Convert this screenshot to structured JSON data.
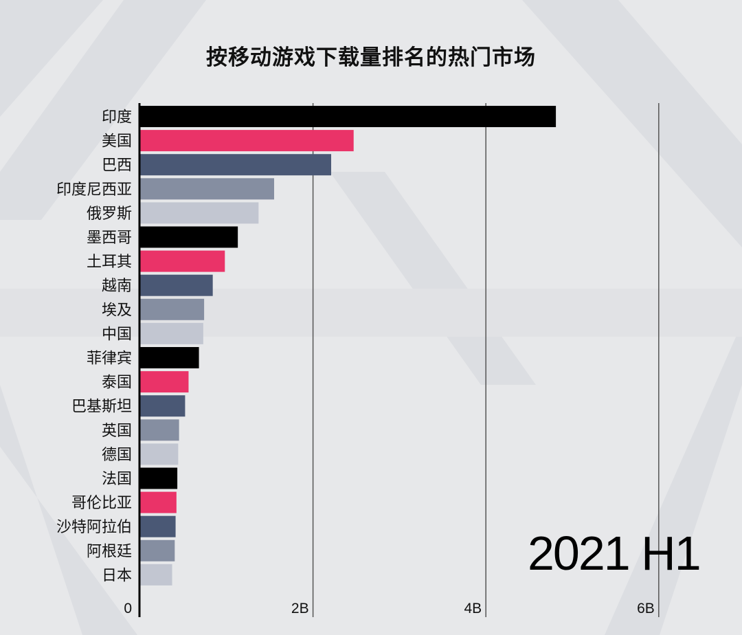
{
  "title": "按移动游戏下载量排名的热门市场",
  "period_label": "2021 H1",
  "colors": {
    "background": "#e7e8ea",
    "bar_cycle": [
      "#000000",
      "#ea3368",
      "#4a5875",
      "#858ea1",
      "#c2c6d1"
    ],
    "gridline": "#555555"
  },
  "chart_data": {
    "type": "bar",
    "orientation": "horizontal",
    "title": "按移动游戏下载量排名的热门市场",
    "categories": [
      "印度",
      "美国",
      "巴西",
      "印度尼西亚",
      "俄罗斯",
      "墨西哥",
      "土耳其",
      "越南",
      "埃及",
      "中国",
      "菲律宾",
      "泰国",
      "巴基斯坦",
      "英国",
      "德国",
      "法国",
      "哥伦比亚",
      "沙特阿拉伯",
      "阿根廷",
      "日本"
    ],
    "values": [
      4.81,
      2.47,
      2.21,
      1.55,
      1.37,
      1.13,
      0.98,
      0.84,
      0.74,
      0.73,
      0.68,
      0.56,
      0.52,
      0.45,
      0.44,
      0.43,
      0.42,
      0.41,
      0.4,
      0.37
    ],
    "unit": "B",
    "xlim": [
      0,
      6.8
    ],
    "x_ticks": [
      0,
      2,
      4,
      6
    ],
    "x_tick_labels": [
      "0",
      "2B",
      "4B",
      "6B"
    ],
    "grid": true
  }
}
